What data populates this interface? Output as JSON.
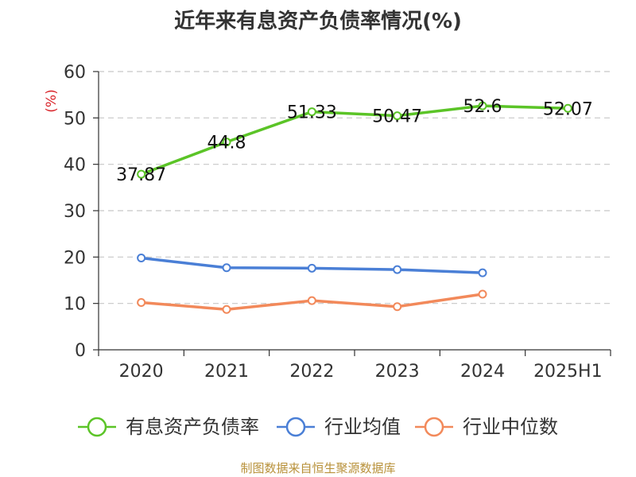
{
  "title": "近年来有息资产负债率情况(%)",
  "footer": "制图数据来自恒生聚源数据库",
  "chart_data": {
    "type": "line",
    "title": "近年来有息资产负债率情况(%)",
    "ylabel": "(%)",
    "xlabel": "",
    "categories": [
      "2020",
      "2021",
      "2022",
      "2023",
      "2024",
      "2025H1"
    ],
    "ylim": [
      0,
      60
    ],
    "yticks": [
      0,
      10,
      20,
      30,
      40,
      50,
      60
    ],
    "grid": true,
    "legend_position": "bottom",
    "series": [
      {
        "name": "有息资产负债率",
        "color": "#5bc427",
        "values": [
          37.87,
          44.8,
          51.33,
          50.47,
          52.6,
          52.07
        ],
        "labels": [
          "37.87",
          "44.8",
          "51.33",
          "50.47",
          "52.6",
          "52.07"
        ]
      },
      {
        "name": "行业均值",
        "color": "#4a7fd6",
        "values": [
          19.8,
          17.7,
          17.6,
          17.3,
          16.6,
          null
        ]
      },
      {
        "name": "行业中位数",
        "color": "#f2895a",
        "values": [
          10.2,
          8.7,
          10.6,
          9.3,
          12.0,
          null
        ]
      }
    ]
  }
}
